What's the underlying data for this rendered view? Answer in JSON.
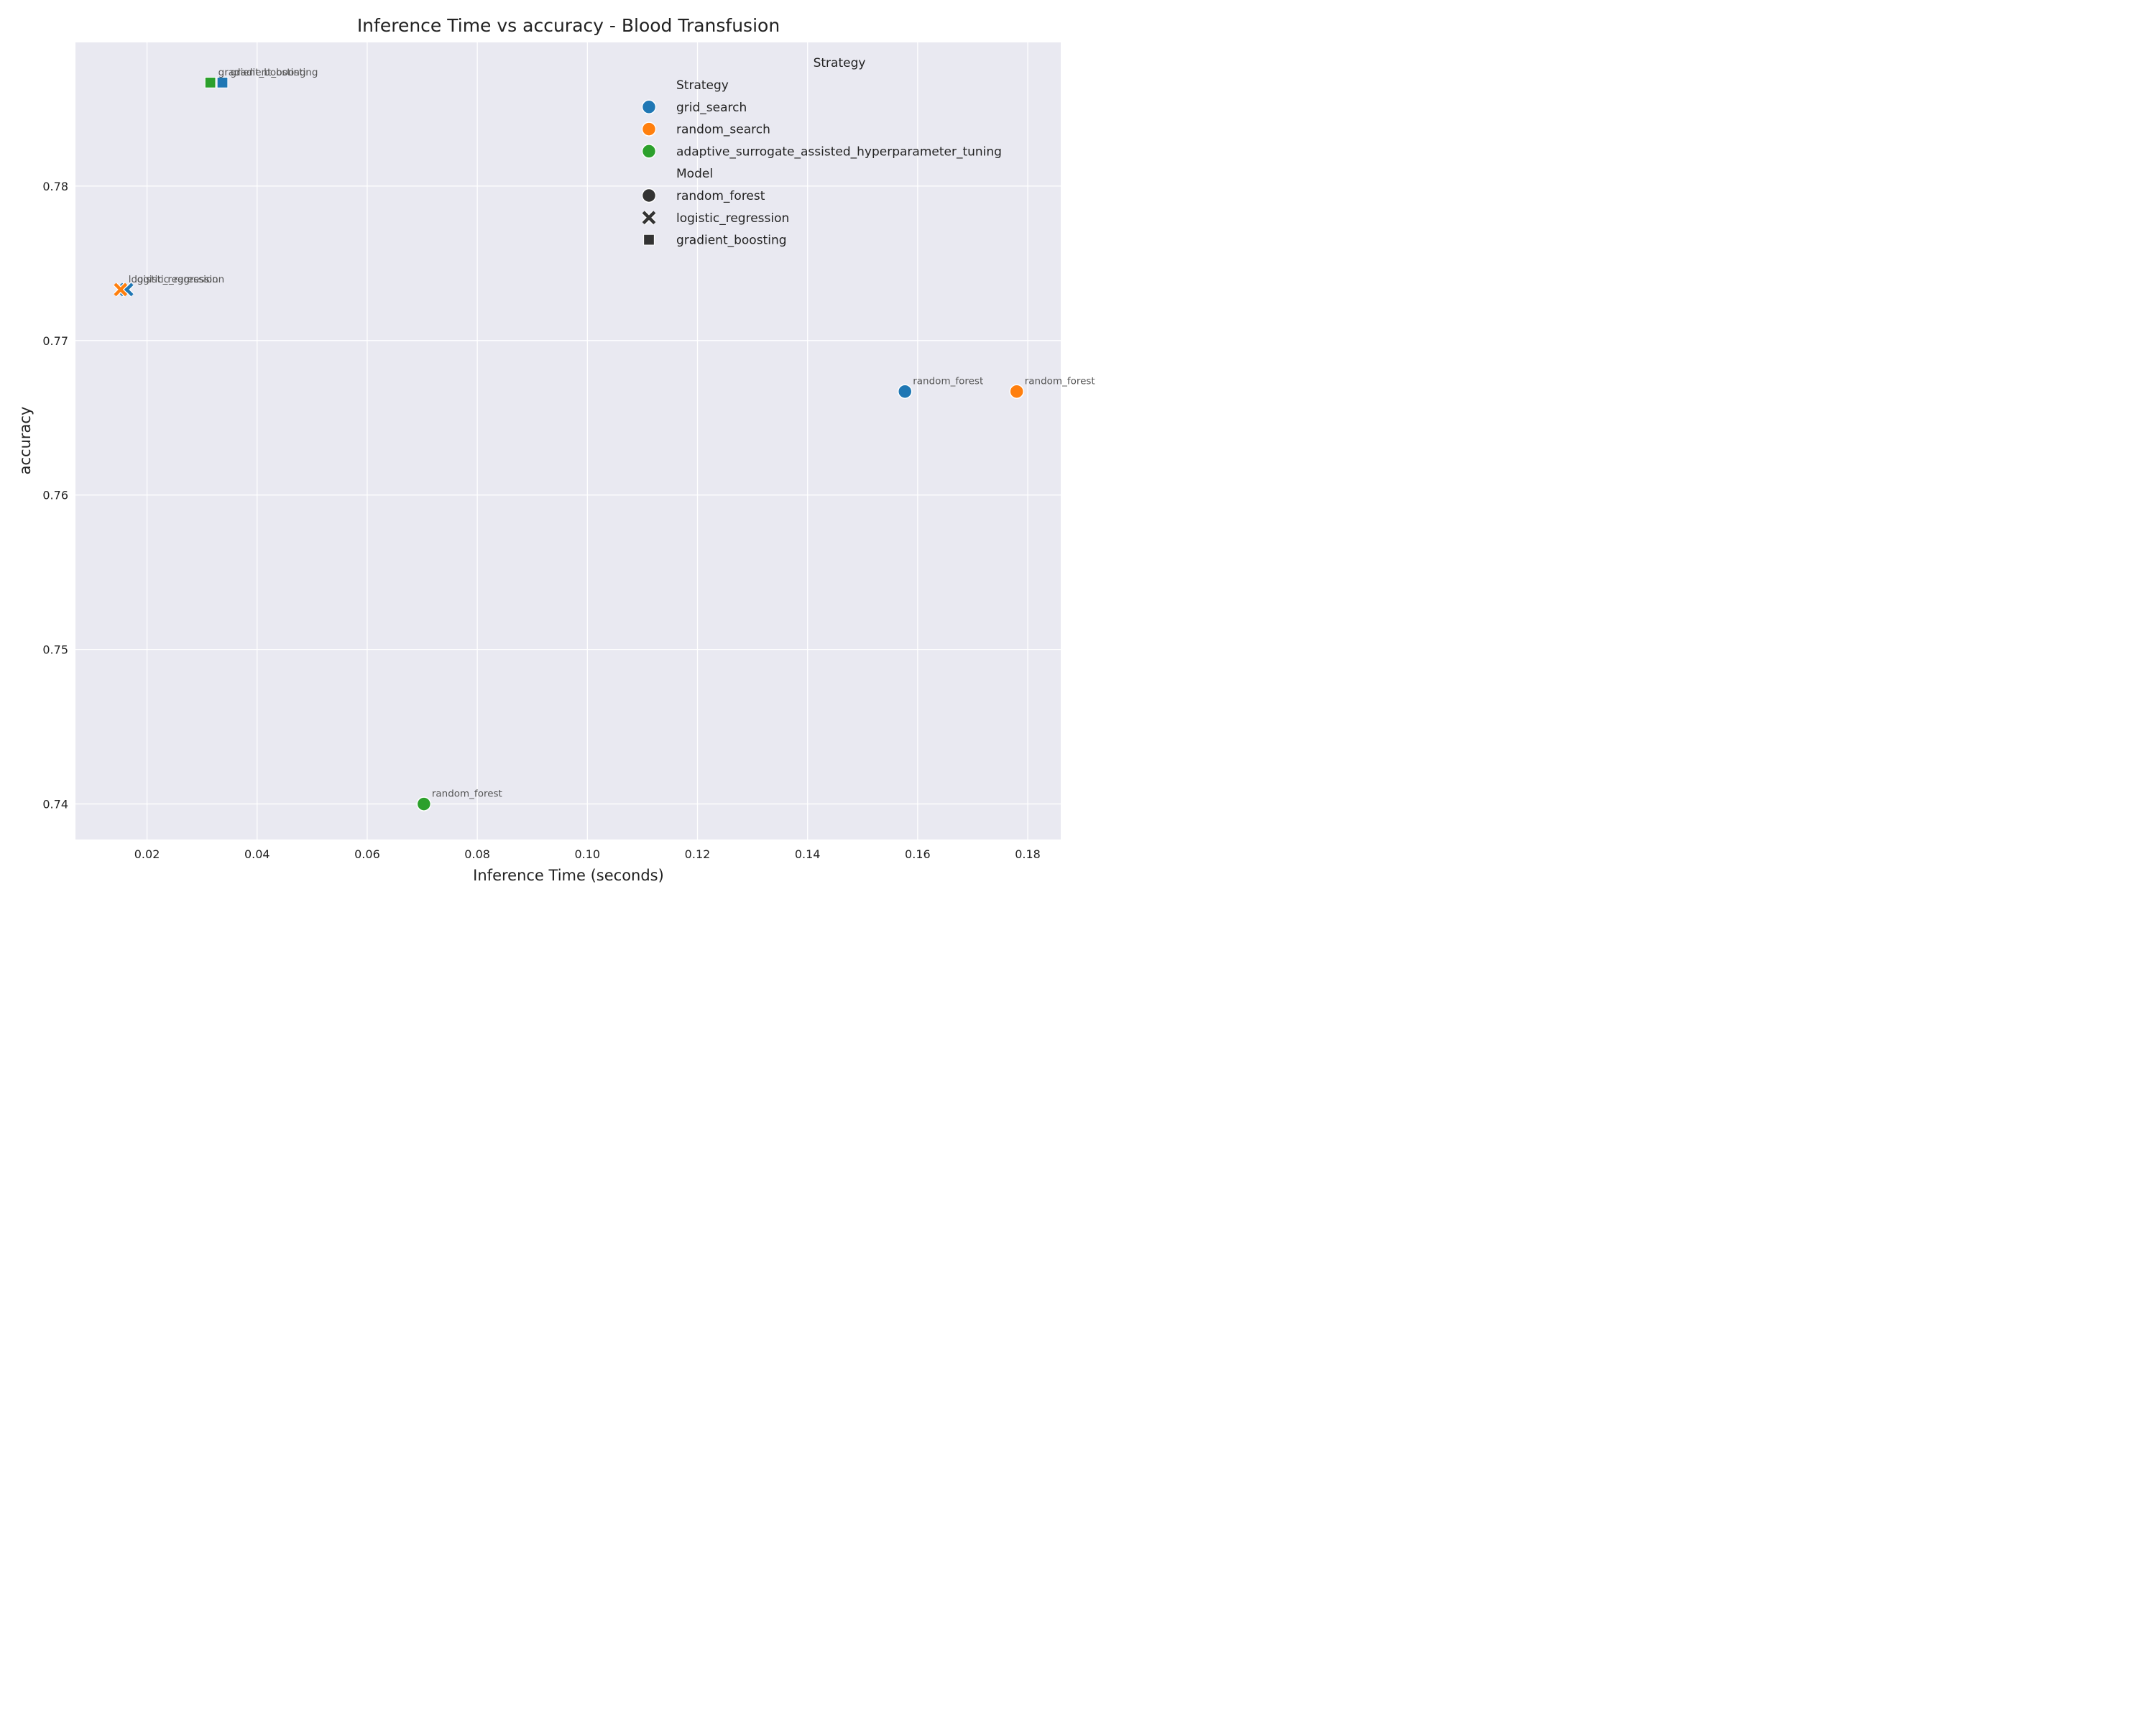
{
  "chart_data": {
    "type": "scatter",
    "title": "Inference Time vs accuracy - Blood Transfusion",
    "xlabel": "Inference Time (seconds)",
    "ylabel": "accuracy",
    "xlim": [
      0.007,
      0.186
    ],
    "ylim": [
      0.7377,
      0.7893
    ],
    "xticks": [
      0.02,
      0.04,
      0.06,
      0.08,
      0.1,
      0.12,
      0.14,
      0.16,
      0.18
    ],
    "xtick_labels": [
      "0.02",
      "0.04",
      "0.06",
      "0.08",
      "0.10",
      "0.12",
      "0.14",
      "0.16",
      "0.18"
    ],
    "yticks": [
      0.74,
      0.75,
      0.76,
      0.77,
      0.78
    ],
    "ytick_labels": [
      "0.74",
      "0.75",
      "0.76",
      "0.77",
      "0.78"
    ],
    "grid": true,
    "legend_position": "top-right",
    "strategy_colors": {
      "grid_search": "#1f77b4",
      "random_search": "#ff7f0e",
      "adaptive_surrogate_assisted_hyperparameter_tuning": "#2ca02c"
    },
    "model_markers": {
      "random_forest": "circle",
      "logistic_regression": "x",
      "gradient_boosting": "square"
    },
    "points": [
      {
        "x": 0.0337,
        "y": 0.7867,
        "strategy": "grid_search",
        "model": "gradient_boosting",
        "label": "gradient_boosting"
      },
      {
        "x": 0.0315,
        "y": 0.7867,
        "strategy": "adaptive_surrogate_assisted_hyperparameter_tuning",
        "model": "gradient_boosting",
        "label": "gradient_boosting"
      },
      {
        "x": 0.0163,
        "y": 0.7733,
        "strategy": "grid_search",
        "model": "logistic_regression",
        "label": "logistic_regression"
      },
      {
        "x": 0.0152,
        "y": 0.7733,
        "strategy": "random_search",
        "model": "logistic_regression",
        "label": "logistic_regression"
      },
      {
        "x": 0.1577,
        "y": 0.7667,
        "strategy": "grid_search",
        "model": "random_forest",
        "label": "random_forest"
      },
      {
        "x": 0.178,
        "y": 0.7667,
        "strategy": "random_search",
        "model": "random_forest",
        "label": "random_forest"
      },
      {
        "x": 0.0703,
        "y": 0.74,
        "strategy": "adaptive_surrogate_assisted_hyperparameter_tuning",
        "model": "random_forest",
        "label": "random_forest"
      }
    ],
    "legend": {
      "title": "Strategy",
      "sections": [
        {
          "heading": "Strategy",
          "items": [
            {
              "label": "grid_search",
              "color": "#1f77b4",
              "marker": "circle"
            },
            {
              "label": "random_search",
              "color": "#ff7f0e",
              "marker": "circle"
            },
            {
              "label": "adaptive_surrogate_assisted_hyperparameter_tuning",
              "color": "#2ca02c",
              "marker": "circle"
            }
          ]
        },
        {
          "heading": "Model",
          "items": [
            {
              "label": "random_forest",
              "color": "#333333",
              "marker": "circle"
            },
            {
              "label": "logistic_regression",
              "color": "#333333",
              "marker": "x"
            },
            {
              "label": "gradient_boosting",
              "color": "#333333",
              "marker": "square"
            }
          ]
        }
      ]
    }
  }
}
